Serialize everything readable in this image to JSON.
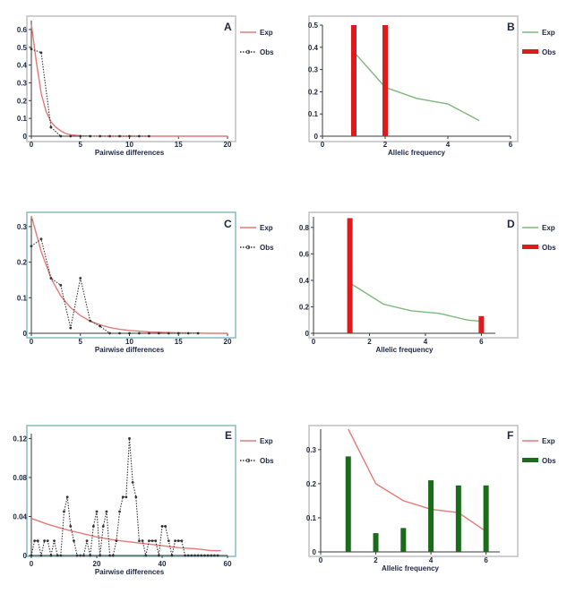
{
  "chart_data": [
    {
      "panel": "A",
      "type": "line",
      "xlabel": "Pairwise differences",
      "ylabel": "",
      "xlim": [
        0,
        20
      ],
      "ylim": [
        0,
        0.65
      ],
      "xticks": [
        0,
        5,
        10,
        15,
        20
      ],
      "yticks": [
        0,
        0.1,
        0.2,
        0.3,
        0.4,
        0.5,
        0.6
      ],
      "grid": false,
      "legend_position": "top-right",
      "series": [
        {
          "name": "Exp",
          "color": "#e27a78",
          "style": "solid",
          "x": [
            0,
            0.5,
            1,
            1.5,
            2,
            2.5,
            3,
            3.5,
            4,
            5,
            6,
            8,
            10,
            15,
            20
          ],
          "y": [
            0.63,
            0.42,
            0.24,
            0.14,
            0.08,
            0.05,
            0.03,
            0.015,
            0.008,
            0.003,
            0.001,
            0,
            0,
            0,
            0
          ]
        },
        {
          "name": "Obs",
          "color": "#333333",
          "style": "dotted",
          "marker": "circle",
          "x": [
            0,
            1,
            2,
            3,
            4,
            5,
            6,
            7,
            8,
            9,
            10,
            11,
            12
          ],
          "y": [
            0.49,
            0.47,
            0.05,
            0,
            0,
            0,
            0,
            0,
            0,
            0,
            0,
            0,
            0
          ]
        }
      ]
    },
    {
      "panel": "B",
      "type": "bar",
      "xlabel": "Allelic frequency",
      "ylabel": "",
      "xlim": [
        0,
        6
      ],
      "ylim": [
        0,
        0.5
      ],
      "xticks": [
        0,
        2,
        4,
        6
      ],
      "yticks": [
        0,
        0.1,
        0.2,
        0.3,
        0.4,
        0.5
      ],
      "grid": false,
      "legend_position": "top-right",
      "series": [
        {
          "name": "Exp",
          "kind": "line",
          "color": "#7cb87a",
          "x": [
            1,
            2,
            3,
            4,
            5
          ],
          "y": [
            0.38,
            0.22,
            0.17,
            0.145,
            0.07
          ]
        },
        {
          "name": "Obs",
          "kind": "bar",
          "color": "#e0191c",
          "x": [
            1,
            2
          ],
          "y": [
            0.5,
            0.5
          ]
        }
      ]
    },
    {
      "panel": "C",
      "type": "line",
      "xlabel": "Pairwise differences",
      "ylabel": "",
      "xlim": [
        0,
        20
      ],
      "ylim": [
        0,
        0.33
      ],
      "xticks": [
        0,
        5,
        10,
        15,
        20
      ],
      "yticks": [
        0,
        0.1,
        0.2,
        0.3
      ],
      "grid": false,
      "legend_position": "top-right",
      "series": [
        {
          "name": "Exp",
          "color": "#e27a78",
          "style": "solid",
          "x": [
            0,
            1,
            2,
            3,
            4,
            5,
            6,
            7,
            8,
            9,
            10,
            12,
            14,
            16,
            18,
            20
          ],
          "y": [
            0.33,
            0.23,
            0.155,
            0.105,
            0.072,
            0.05,
            0.034,
            0.024,
            0.016,
            0.011,
            0.008,
            0.004,
            0.002,
            0.001,
            0,
            0
          ]
        },
        {
          "name": "Obs",
          "color": "#333333",
          "style": "dotted",
          "marker": "circle",
          "x": [
            0,
            1,
            2,
            3,
            4,
            5,
            6,
            7,
            8,
            9,
            10,
            11,
            12,
            13,
            14,
            15,
            16,
            17
          ],
          "y": [
            0.245,
            0.265,
            0.155,
            0.135,
            0.015,
            0.155,
            0.035,
            0.02,
            0,
            0,
            0,
            0,
            0,
            0,
            0,
            0,
            0,
            0
          ]
        }
      ]
    },
    {
      "panel": "D",
      "type": "bar",
      "xlabel": "Allelic frequency",
      "ylabel": "",
      "xlim": [
        0,
        6.5
      ],
      "ylim": [
        0,
        0.88
      ],
      "xticks": [
        0,
        2,
        4,
        6
      ],
      "yticks": [
        0,
        0.2,
        0.4,
        0.6,
        0.8
      ],
      "grid": false,
      "legend_position": "top-right",
      "series": [
        {
          "name": "Exp",
          "kind": "line",
          "color": "#7cb87a",
          "x": [
            1.3,
            2.5,
            3.5,
            4.5,
            5.5,
            6
          ],
          "y": [
            0.38,
            0.22,
            0.17,
            0.15,
            0.1,
            0.09
          ]
        },
        {
          "name": "Obs",
          "kind": "bar",
          "color": "#e0191c",
          "x": [
            1.3,
            6
          ],
          "y": [
            0.87,
            0.13
          ]
        }
      ]
    },
    {
      "panel": "E",
      "type": "line",
      "xlabel": "Pairwise differences",
      "ylabel": "",
      "xlim": [
        0,
        60
      ],
      "ylim": [
        0,
        0.125
      ],
      "xticks": [
        0,
        20,
        40,
        60
      ],
      "yticks": [
        0,
        0.04,
        0.08,
        0.12
      ],
      "grid": false,
      "legend_position": "top-right",
      "series": [
        {
          "name": "Exp",
          "color": "#e27a78",
          "style": "solid",
          "x": [
            0,
            5,
            10,
            15,
            20,
            25,
            30,
            35,
            40,
            45,
            50,
            55,
            58
          ],
          "y": [
            0.038,
            0.032,
            0.027,
            0.023,
            0.019,
            0.016,
            0.014,
            0.012,
            0.01,
            0.008,
            0.007,
            0.005,
            0.005
          ]
        },
        {
          "name": "Obs",
          "color": "#333333",
          "style": "dotted",
          "marker": "circle",
          "x": [
            0,
            1,
            2,
            3,
            4,
            5,
            6,
            7,
            8,
            9,
            10,
            11,
            12,
            13,
            14,
            15,
            16,
            17,
            18,
            19,
            20,
            21,
            22,
            23,
            24,
            25,
            26,
            27,
            28,
            29,
            30,
            31,
            32,
            33,
            34,
            35,
            36,
            37,
            38,
            39,
            40,
            41,
            42,
            43,
            44,
            45,
            46,
            47,
            48,
            49,
            50,
            51,
            52,
            53,
            54,
            55,
            56,
            57
          ],
          "y": [
            0,
            0.015,
            0.015,
            0,
            0.015,
            0.015,
            0,
            0.015,
            0,
            0,
            0.045,
            0.06,
            0.03,
            0.015,
            0,
            0,
            0,
            0.015,
            0,
            0.03,
            0.045,
            0,
            0.03,
            0.045,
            0,
            0,
            0.015,
            0.045,
            0.06,
            0.06,
            0.12,
            0.075,
            0.06,
            0.015,
            0.015,
            0,
            0.015,
            0.015,
            0.015,
            0,
            0.03,
            0.03,
            0.015,
            0,
            0.015,
            0.015,
            0.015,
            0,
            0,
            0,
            0,
            0,
            0,
            0,
            0,
            0,
            0,
            0
          ]
        }
      ]
    },
    {
      "panel": "F",
      "type": "bar",
      "xlabel": "Allelic frequency",
      "ylabel": "",
      "xlim": [
        0,
        6.5
      ],
      "ylim": [
        0,
        0.36
      ],
      "xticks": [
        0,
        2,
        4,
        6
      ],
      "yticks": [
        0,
        0.1,
        0.2,
        0.3
      ],
      "grid": false,
      "legend_position": "top-right",
      "series": [
        {
          "name": "Exp",
          "kind": "line",
          "color": "#e27a78",
          "x": [
            1,
            2,
            3,
            4,
            5,
            6
          ],
          "y": [
            0.36,
            0.2,
            0.15,
            0.125,
            0.115,
            0.06
          ]
        },
        {
          "name": "Obs",
          "kind": "bar",
          "color": "#1a6b1a",
          "x": [
            1,
            2,
            3,
            4,
            5,
            6
          ],
          "y": [
            0.28,
            0.055,
            0.07,
            0.21,
            0.195,
            0.195
          ]
        }
      ]
    }
  ]
}
